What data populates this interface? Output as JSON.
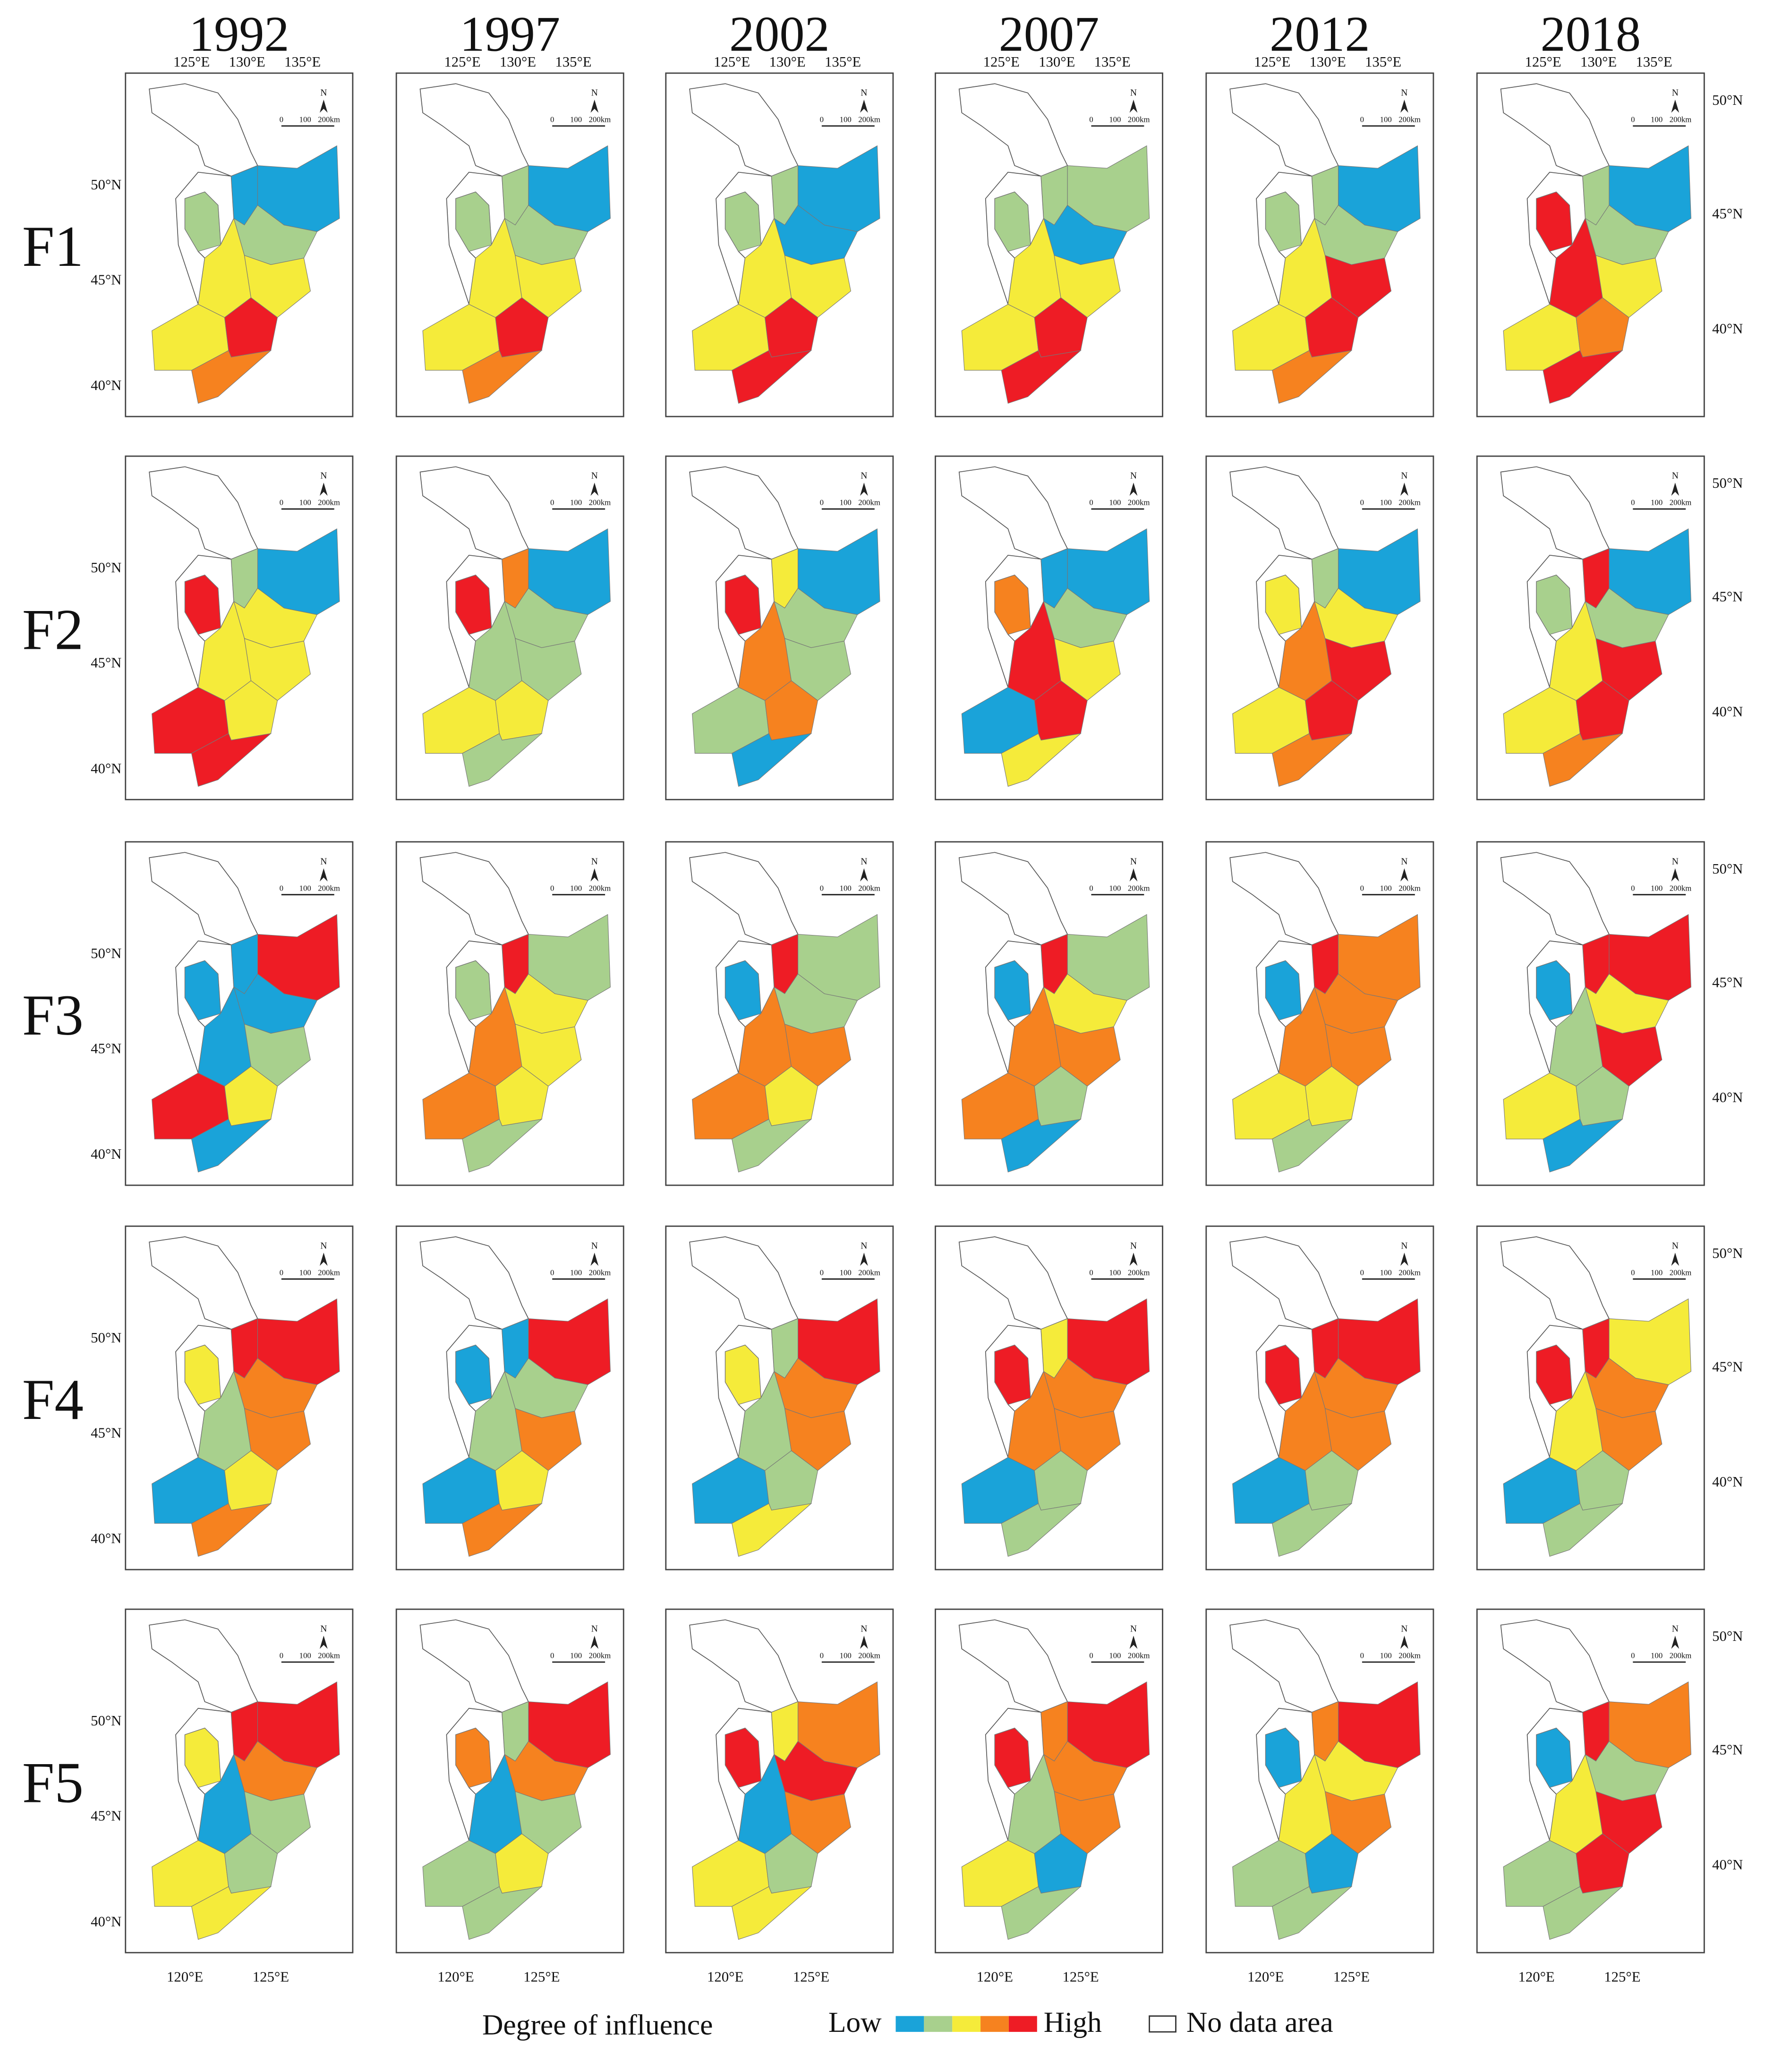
{
  "columns": [
    "1992",
    "1997",
    "2002",
    "2007",
    "2012",
    "2018"
  ],
  "rows": [
    "F1",
    "F2",
    "F3",
    "F4",
    "F5"
  ],
  "top_lon_labels": [
    "125°E",
    "130°E",
    "135°E"
  ],
  "bottom_lon_labels": [
    "120°E",
    "125°E"
  ],
  "left_lat_labels": [
    "50°N",
    "45°N",
    "40°N"
  ],
  "right_lat_labels": [
    "50°N",
    "45°N",
    "40°N"
  ],
  "scale_labels": [
    "0",
    "100",
    "200km"
  ],
  "north_label": "N",
  "legend": {
    "title": "Degree of influence",
    "low": "Low",
    "high": "High",
    "colors": [
      "#1aa3d9",
      "#a8d08d",
      "#f5eb3a",
      "#f6821f",
      "#ee1c25"
    ],
    "no_data": "No data area"
  },
  "region_levels": [
    [
      [
        0,
        0,
        1,
        1,
        2,
        2,
        2,
        4,
        3
      ],
      [
        0,
        1,
        1,
        1,
        2,
        2,
        2,
        4,
        3
      ],
      [
        0,
        1,
        0,
        1,
        2,
        2,
        2,
        4,
        4
      ],
      [
        1,
        1,
        0,
        1,
        2,
        2,
        2,
        4,
        4
      ],
      [
        0,
        1,
        1,
        1,
        2,
        4,
        2,
        4,
        3
      ],
      [
        0,
        1,
        1,
        4,
        4,
        2,
        2,
        3,
        4
      ]
    ],
    [
      [
        0,
        1,
        2,
        4,
        2,
        2,
        4,
        2,
        4
      ],
      [
        0,
        3,
        1,
        4,
        1,
        1,
        2,
        2,
        1
      ],
      [
        0,
        2,
        1,
        4,
        3,
        1,
        1,
        3,
        0
      ],
      [
        0,
        0,
        1,
        3,
        4,
        2,
        0,
        4,
        2
      ],
      [
        0,
        1,
        2,
        2,
        3,
        4,
        2,
        4,
        3
      ],
      [
        0,
        4,
        1,
        1,
        2,
        4,
        2,
        4,
        3
      ]
    ],
    [
      [
        4,
        0,
        0,
        0,
        0,
        1,
        4,
        2,
        0
      ],
      [
        1,
        4,
        2,
        1,
        3,
        2,
        3,
        2,
        1
      ],
      [
        1,
        4,
        1,
        0,
        3,
        3,
        3,
        2,
        1
      ],
      [
        1,
        4,
        2,
        0,
        3,
        3,
        3,
        1,
        0
      ],
      [
        3,
        4,
        3,
        0,
        3,
        3,
        2,
        2,
        1
      ],
      [
        4,
        4,
        2,
        0,
        1,
        4,
        2,
        1,
        0
      ]
    ],
    [
      [
        4,
        4,
        3,
        2,
        1,
        3,
        0,
        2,
        3
      ],
      [
        4,
        0,
        1,
        0,
        1,
        3,
        0,
        2,
        3
      ],
      [
        4,
        1,
        3,
        2,
        1,
        3,
        0,
        1,
        2
      ],
      [
        4,
        2,
        3,
        4,
        3,
        3,
        0,
        1,
        1
      ],
      [
        4,
        4,
        3,
        4,
        3,
        3,
        0,
        1,
        1
      ],
      [
        2,
        4,
        3,
        4,
        2,
        3,
        0,
        1,
        1
      ]
    ],
    [
      [
        4,
        4,
        3,
        2,
        0,
        1,
        2,
        1,
        2
      ],
      [
        4,
        1,
        3,
        3,
        0,
        1,
        1,
        2,
        1
      ],
      [
        3,
        2,
        4,
        4,
        0,
        3,
        2,
        1,
        2
      ],
      [
        4,
        3,
        3,
        4,
        1,
        3,
        2,
        0,
        1
      ],
      [
        4,
        3,
        2,
        0,
        2,
        3,
        1,
        0,
        1
      ],
      [
        3,
        4,
        1,
        0,
        2,
        4,
        1,
        4,
        1
      ]
    ]
  ]
}
